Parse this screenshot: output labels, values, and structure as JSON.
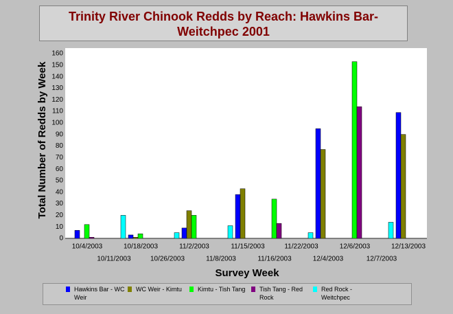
{
  "chart_data": {
    "type": "bar",
    "title": "Trinity River Chinook Redds by Reach: Hawkins Bar-Weitchpec 2001",
    "y_label": "Total Number of Redds by Week",
    "x_label": "Survey Week",
    "categories": [
      "10/4/2003",
      "10/11/2003",
      "10/18/2003",
      "10/26/2003",
      "11/2/2003",
      "11/8/2003",
      "11/15/2003",
      "11/16/2003",
      "11/22/2003",
      "12/4/2003",
      "12/6/2003",
      "12/7/2003",
      "12/13/2003"
    ],
    "series": [
      {
        "name": "Hawkins Bar - WC Weir",
        "color": "#0000ff",
        "values": [
          7,
          0,
          3,
          0,
          9,
          0,
          38,
          0,
          0,
          95,
          0,
          0,
          109
        ]
      },
      {
        "name": "WC Weir - Kimtu",
        "color": "#808000",
        "values": [
          0,
          0,
          1,
          0,
          24,
          0,
          43,
          0,
          0,
          77,
          0,
          0,
          90
        ]
      },
      {
        "name": "Kimtu - Tish Tang",
        "color": "#00ff00",
        "values": [
          12,
          0,
          4,
          0,
          20,
          0,
          0,
          34,
          0,
          0,
          153,
          0,
          0
        ]
      },
      {
        "name": "Tish Tang - Red Rock",
        "color": "#800080",
        "values": [
          1,
          0,
          0,
          0,
          0,
          0,
          0,
          13,
          0,
          0,
          114,
          0,
          0
        ]
      },
      {
        "name": "Red Rock - Weitchpec",
        "color": "#00ffff",
        "values": [
          0,
          20,
          0,
          5,
          0,
          11,
          0,
          0,
          5,
          0,
          0,
          14,
          0
        ]
      }
    ],
    "ylim": [
      0,
      160
    ],
    "yticks": [
      0,
      10,
      20,
      30,
      40,
      50,
      60,
      70,
      80,
      90,
      100,
      110,
      120,
      130,
      140,
      150,
      160
    ],
    "grid": false
  }
}
